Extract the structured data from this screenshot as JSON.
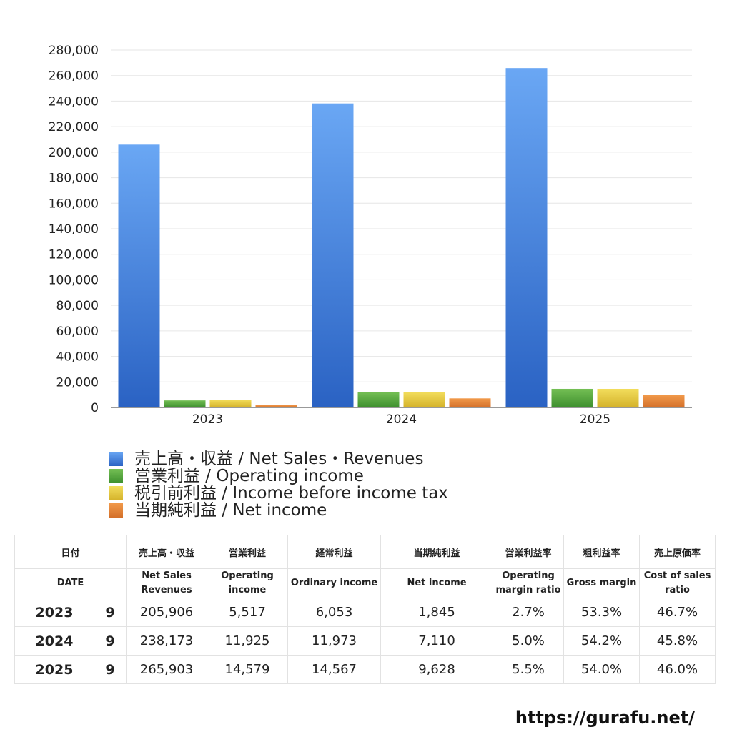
{
  "chart_data": {
    "type": "bar",
    "categories": [
      "2023",
      "2024",
      "2025"
    ],
    "series": [
      {
        "name": "売上高・収益 / Net Sales・Revenues",
        "values": [
          205906,
          238173,
          265903
        ],
        "color_top": "#6aa7f4",
        "color_bottom": "#2a62c3"
      },
      {
        "name": "営業利益 / Operating income",
        "values": [
          5517,
          11925,
          14579
        ],
        "color_top": "#74bf54",
        "color_bottom": "#3d8f2e"
      },
      {
        "name": "税引前利益 / Income before income tax",
        "values": [
          6053,
          11973,
          14567
        ],
        "color_top": "#f2dd5c",
        "color_bottom": "#d4b22a"
      },
      {
        "name": "当期純利益 / Net income",
        "values": [
          1845,
          7110,
          9628
        ],
        "color_top": "#f1994a",
        "color_bottom": "#d4702a"
      }
    ],
    "ylim": [
      0,
      280000
    ],
    "yticks": [
      "0",
      "20,000",
      "40,000",
      "60,000",
      "80,000",
      "100,000",
      "120,000",
      "140,000",
      "160,000",
      "180,000",
      "200,000",
      "220,000",
      "240,000",
      "260,000",
      "280,000"
    ],
    "ytick_values": [
      0,
      20000,
      40000,
      60000,
      80000,
      100000,
      120000,
      140000,
      160000,
      180000,
      200000,
      220000,
      240000,
      260000,
      280000
    ],
    "grid": true,
    "legend_position": "bottom-left"
  },
  "table": {
    "header_jp": [
      "日付",
      "売上高・収益",
      "営業利益",
      "経常利益",
      "当期純利益",
      "営業利益率",
      "粗利益率",
      "売上原価率"
    ],
    "header_en": [
      "DATE",
      "Net Sales\nRevenues",
      "Operating\nincome",
      "Ordinary income",
      "Net income",
      "Operating\nmargin ratio",
      "Gross margin",
      "Cost of sales\nratio"
    ],
    "rows": [
      {
        "year": "2023",
        "month": "9",
        "sales": "205,906",
        "op": "5,517",
        "ord": "6,053",
        "net": "1,845",
        "opm": "2.7%",
        "gm": "53.3%",
        "cos": "46.7%"
      },
      {
        "year": "2024",
        "month": "9",
        "sales": "238,173",
        "op": "11,925",
        "ord": "11,973",
        "net": "7,110",
        "opm": "5.0%",
        "gm": "54.2%",
        "cos": "45.8%"
      },
      {
        "year": "2025",
        "month": "9",
        "sales": "265,903",
        "op": "14,579",
        "ord": "14,567",
        "net": "9,628",
        "opm": "5.5%",
        "gm": "54.0%",
        "cos": "46.0%"
      }
    ]
  },
  "source_url": "https://gurafu.net/"
}
